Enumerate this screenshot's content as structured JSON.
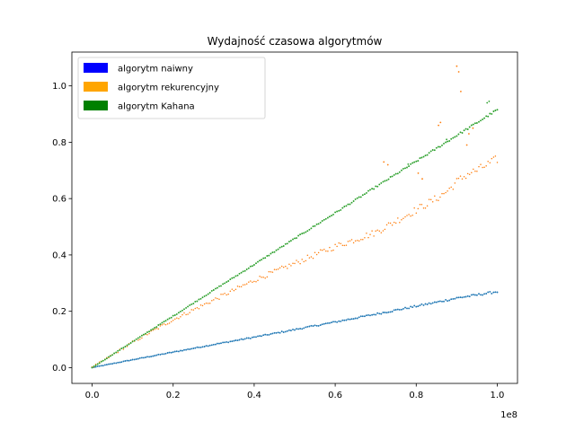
{
  "chart_data": {
    "type": "scatter",
    "title": "Wydajność czasowa algorytmów",
    "xlabel": "",
    "ylabel": "",
    "x_offset_label": "1e8",
    "xlim": [
      -0.05,
      1.05
    ],
    "ylim": [
      -0.056,
      1.12
    ],
    "x_ticks": [
      0.0,
      0.2,
      0.4,
      0.6,
      0.8,
      1.0
    ],
    "x_tick_labels": [
      "0.0",
      "0.2",
      "0.4",
      "0.6",
      "0.8",
      "1.0"
    ],
    "y_ticks": [
      0.0,
      0.2,
      0.4,
      0.6,
      0.8,
      1.0
    ],
    "y_tick_labels": [
      "0.0",
      "0.2",
      "0.4",
      "0.6",
      "0.8",
      "1.0"
    ],
    "grid": false,
    "legend_position": "top-left",
    "legend": [
      {
        "label": "algorytm naiwny",
        "color": "#0000ff"
      },
      {
        "label": "algorytm rekurencyjny",
        "color": "#ffa500"
      },
      {
        "label": "algorytm Kahana",
        "color": "#008000"
      }
    ],
    "series": [
      {
        "name": "algorytm naiwny",
        "color": "#1f77b4",
        "x": [
          0.0,
          0.1,
          0.2,
          0.3,
          0.4,
          0.5,
          0.6,
          0.7,
          0.8,
          0.85,
          0.9,
          0.95,
          1.0
        ],
        "y": [
          0.0,
          0.028,
          0.055,
          0.082,
          0.108,
          0.135,
          0.162,
          0.19,
          0.218,
          0.232,
          0.247,
          0.258,
          0.27
        ]
      },
      {
        "name": "algorytm rekurencyjny",
        "color": "#ff7f0e",
        "x": [
          0.0,
          0.1,
          0.2,
          0.3,
          0.4,
          0.5,
          0.6,
          0.7,
          0.75,
          0.8,
          0.85,
          0.88,
          0.9,
          0.93,
          0.95,
          1.0
        ],
        "y": [
          0.0,
          0.09,
          0.17,
          0.24,
          0.31,
          0.37,
          0.43,
          0.48,
          0.52,
          0.56,
          0.6,
          0.63,
          0.66,
          0.69,
          0.7,
          0.74
        ],
        "outliers": {
          "x": [
            0.72,
            0.73,
            0.855,
            0.86,
            0.9,
            0.905,
            0.91,
            0.93,
            0.94,
            0.925,
            0.805,
            0.815
          ],
          "y": [
            0.73,
            0.72,
            0.86,
            0.87,
            1.07,
            1.05,
            0.98,
            0.83,
            0.85,
            0.79,
            0.69,
            0.67
          ]
        }
      },
      {
        "name": "algorytm Kahana",
        "color": "#2ca02c",
        "x": [
          0.0,
          0.1,
          0.2,
          0.3,
          0.4,
          0.5,
          0.6,
          0.7,
          0.8,
          0.9,
          1.0
        ],
        "y": [
          0.0,
          0.092,
          0.183,
          0.275,
          0.366,
          0.458,
          0.549,
          0.641,
          0.732,
          0.824,
          0.915
        ],
        "outliers": {
          "x": [
            0.78,
            0.875,
            0.98,
            0.975
          ],
          "y": [
            0.722,
            0.81,
            0.945,
            0.94
          ]
        }
      }
    ]
  }
}
